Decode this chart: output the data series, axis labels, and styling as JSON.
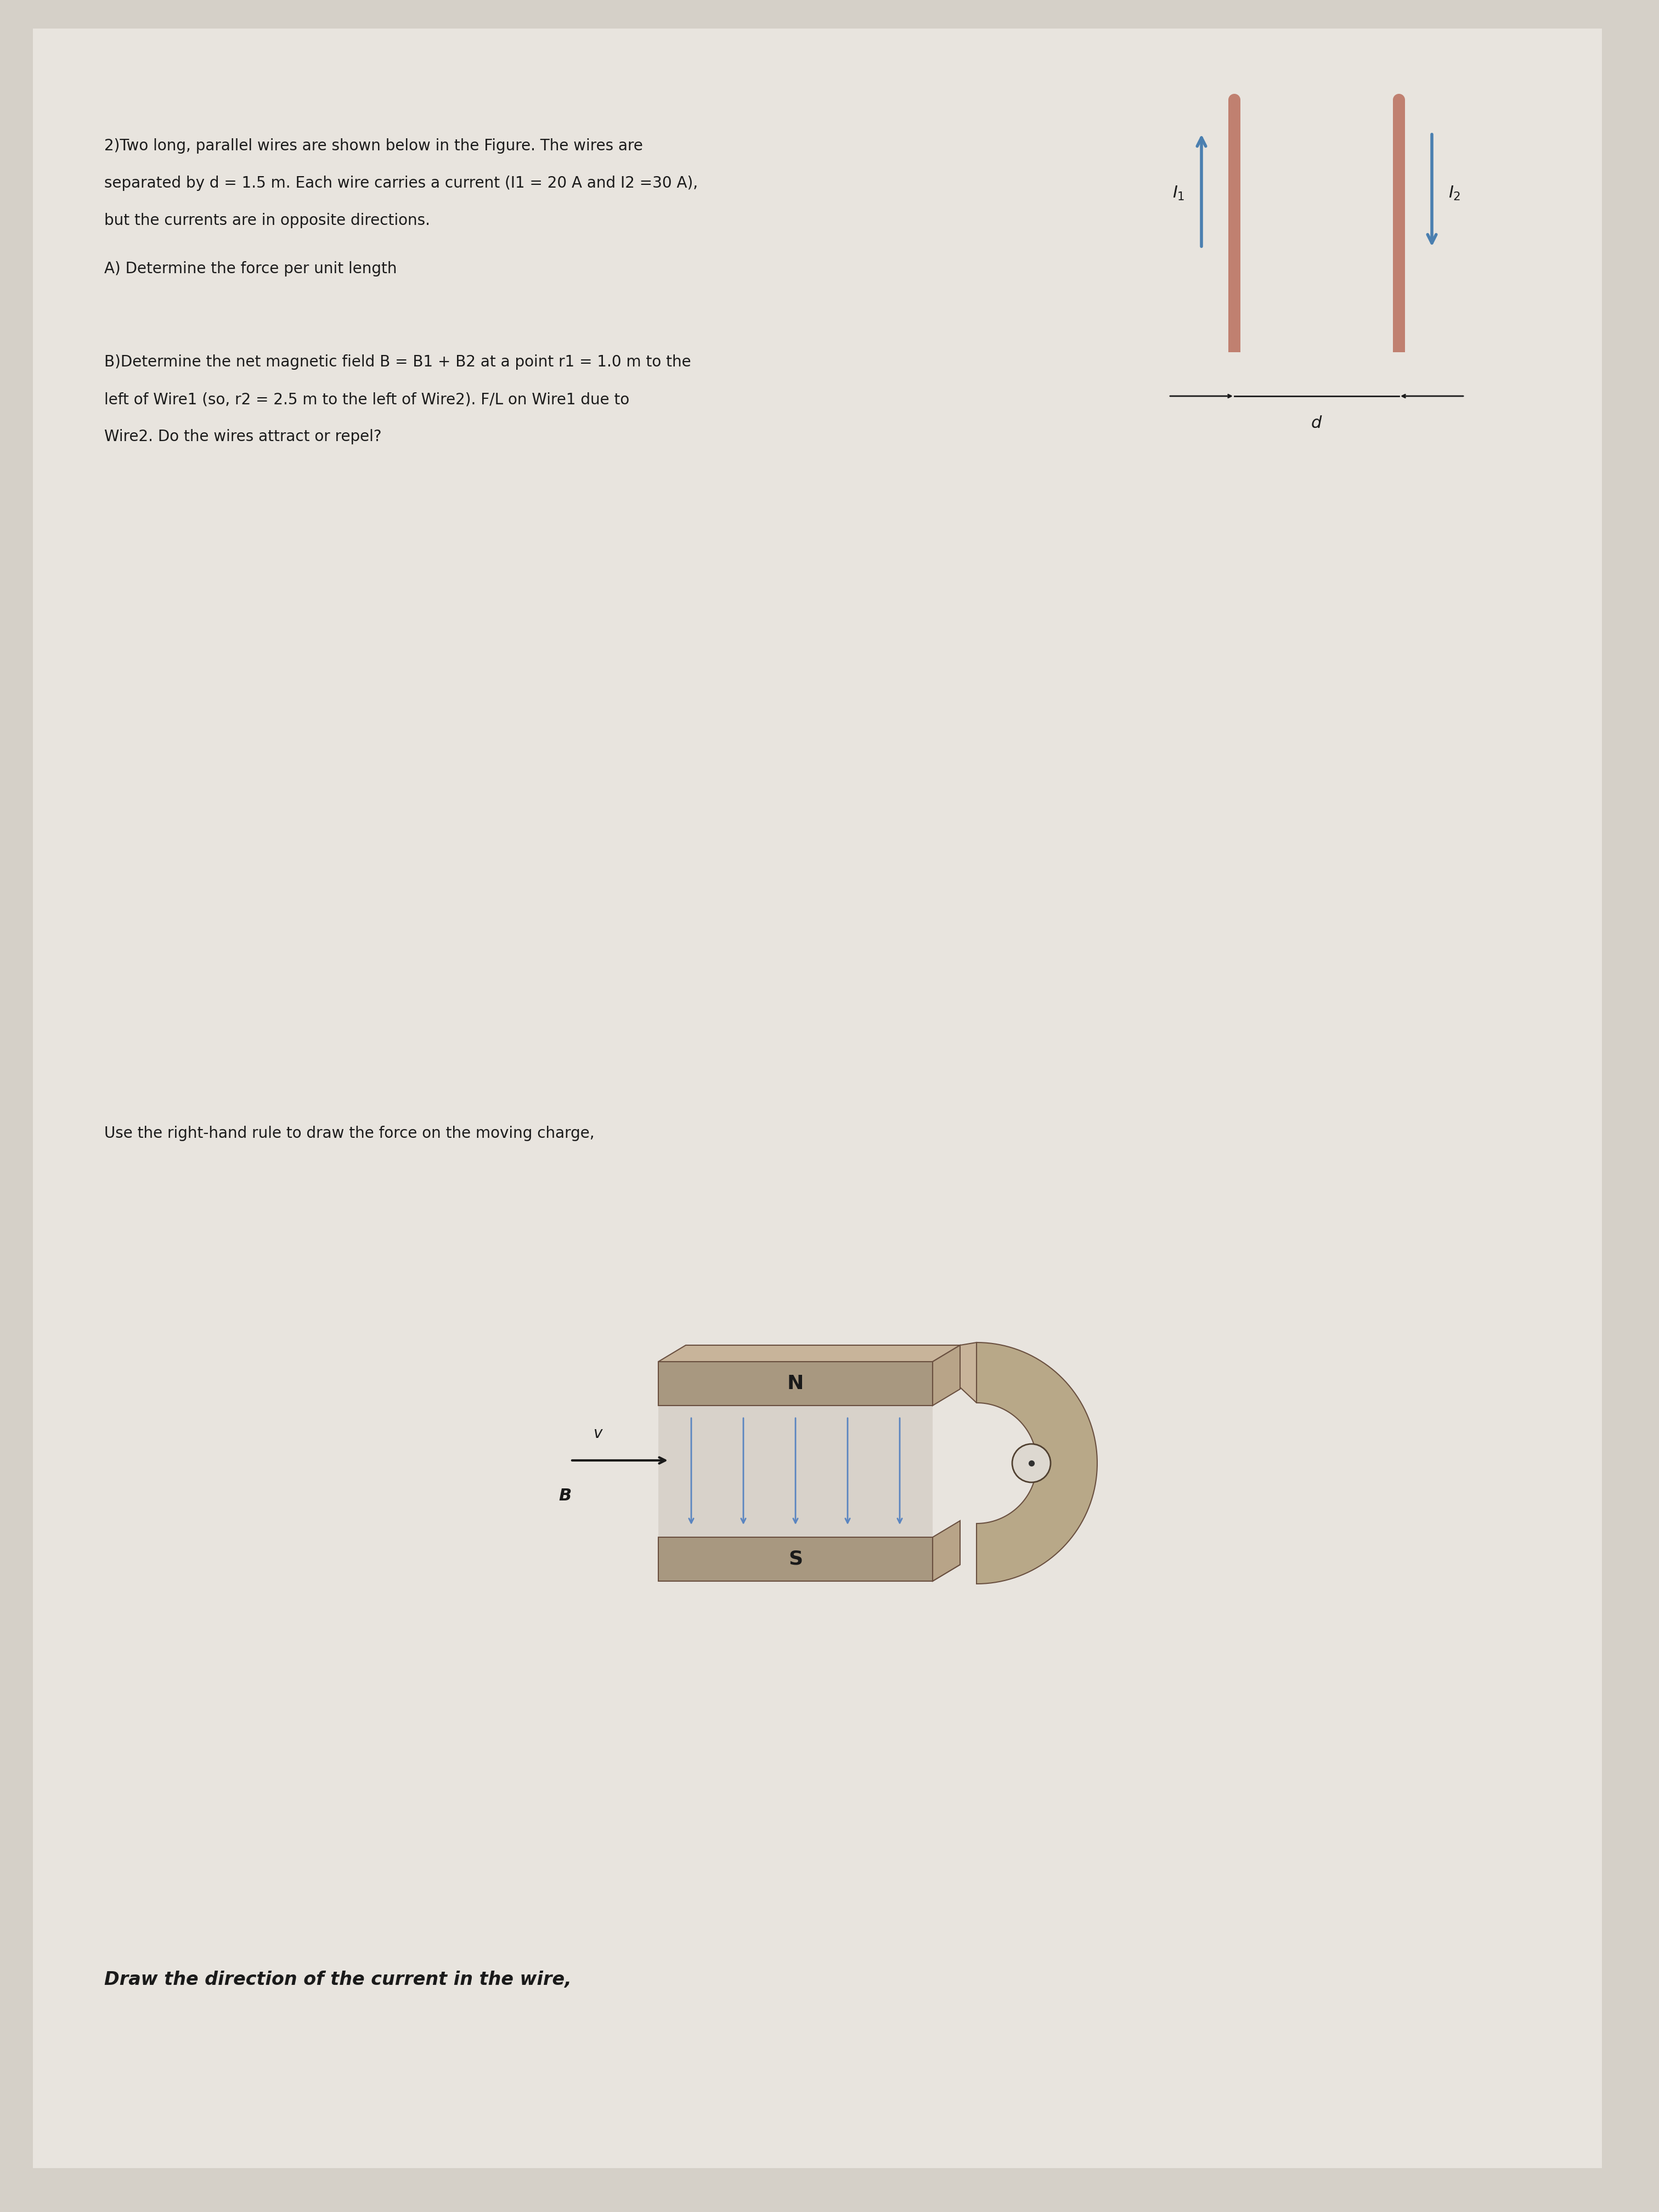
{
  "bg_color": "#d5d0c8",
  "paper_color": "#e8e4de",
  "text_color": "#1a1a1a",
  "wire_color": "#c08070",
  "arrow_color": "#4a7fb0",
  "title_line1": "2)Two long, parallel wires are shown below in the Figure. The wires are",
  "title_line2": "separated by d = 1.5 m. Each wire carries a current (I1 = 20 A and I2 =30 A),",
  "title_line3": "but the currents are in opposite directions.",
  "part_a": "A) Determine the force per unit length",
  "part_b_line1": "B)Determine the net magnetic field B = B1 + B2 at a point r1 = 1.0 m to the",
  "part_b_line2": "left of Wire1 (so, r2 = 2.5 m to the left of Wire2). F/L on Wire1 due to",
  "part_b_line3": "Wire2. Do the wires attract or repel?",
  "bottom_text1": "Use the right-hand rule to draw the force on the moving charge,",
  "bottom_text2": "Draw the direction of the current in the wire,",
  "font_size_main": 20,
  "magnet_color_top": "#b0a090",
  "magnet_color_side": "#c8b49a",
  "magnet_color_front": "#a09080",
  "magnet_color_inner": "#8a7a6a",
  "field_arrow_color": "#5a85c0"
}
